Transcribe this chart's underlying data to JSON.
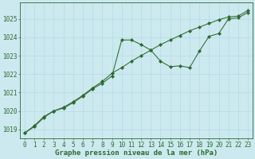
{
  "title": "Graphe pression niveau de la mer (hPa)",
  "background_color": "#cce9f0",
  "grid_color": "#b0d8e0",
  "line_color": "#2d6a2d",
  "xlim": [
    -0.5,
    23.5
  ],
  "ylim": [
    1018.5,
    1025.9
  ],
  "yticks": [
    1019,
    1020,
    1021,
    1022,
    1023,
    1024,
    1025
  ],
  "xticks": [
    0,
    1,
    2,
    3,
    4,
    5,
    6,
    7,
    8,
    9,
    10,
    11,
    12,
    13,
    14,
    15,
    16,
    17,
    18,
    19,
    20,
    21,
    22,
    23
  ],
  "series1_x": [
    0,
    1,
    2,
    3,
    4,
    5,
    6,
    7,
    8,
    9,
    10,
    11,
    12,
    13,
    14,
    15,
    16,
    17,
    18,
    19,
    20,
    21,
    22,
    23
  ],
  "series1_y": [
    1018.8,
    1019.2,
    1019.7,
    1020.0,
    1020.15,
    1020.45,
    1020.8,
    1021.2,
    1021.5,
    1021.9,
    1023.85,
    1023.85,
    1023.6,
    1023.3,
    1022.7,
    1022.4,
    1022.45,
    1022.35,
    1023.25,
    1024.05,
    1024.2,
    1025.0,
    1025.05,
    1025.35
  ],
  "series2_x": [
    0,
    1,
    2,
    3,
    4,
    5,
    6,
    7,
    8,
    9,
    10,
    11,
    12,
    13,
    14,
    15,
    16,
    17,
    18,
    19,
    20,
    21,
    22,
    23
  ],
  "series2_y": [
    1018.8,
    1019.15,
    1019.65,
    1020.0,
    1020.2,
    1020.5,
    1020.85,
    1021.25,
    1021.6,
    1022.05,
    1022.35,
    1022.7,
    1023.0,
    1023.3,
    1023.6,
    1023.85,
    1024.1,
    1024.35,
    1024.55,
    1024.75,
    1024.95,
    1025.1,
    1025.15,
    1025.45
  ],
  "tick_fontsize": 5.5,
  "title_fontsize": 6.5
}
